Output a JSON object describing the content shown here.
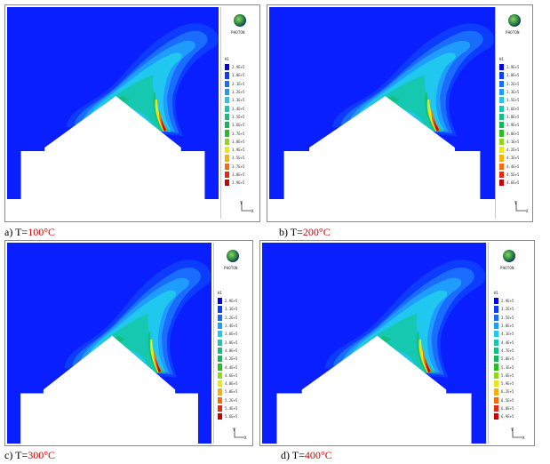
{
  "logo_text": "PHOTON",
  "legend_title": "H1",
  "axes": {
    "y": "Y",
    "x": "X"
  },
  "colors": [
    "#0000e8",
    "#0c3cff",
    "#1a6cff",
    "#1e9cff",
    "#20c8f0",
    "#17c8b0",
    "#12c080",
    "#10b858",
    "#28c020",
    "#90d818",
    "#e8e814",
    "#f8b010",
    "#f86a0a",
    "#e82810",
    "#c80000"
  ],
  "panels": [
    {
      "caption_prefix": "a) T=",
      "temp": "100",
      "unit": "°C",
      "legend": [
        "2.9E+5",
        "3.0E+5",
        "3.1E+5",
        "3.2E+5",
        "3.3E+5",
        "3.4E+5",
        "3.5E+5",
        "3.6E+5",
        "3.7E+5",
        "3.8E+5",
        "3.9E+5",
        "3.5E+5",
        "3.7E+5",
        "3.8E+5",
        "3.9E+5"
      ]
    },
    {
      "caption_prefix": "b) T=",
      "temp": "200",
      "unit": "°C",
      "legend": [
        "2.9E+5",
        "3.0E+5",
        "3.2E+5",
        "3.3E+5",
        "3.5E+5",
        "3.6E+5",
        "3.8E+5",
        "3.9E+5",
        "4.0E+5",
        "4.1E+5",
        "4.2E+5",
        "4.3E+5",
        "4.4E+5",
        "4.5E+5",
        "4.6E+5"
      ]
    },
    {
      "caption_prefix": "c) T=",
      "temp": "300",
      "unit": "°C",
      "legend": [
        "2.9E+5",
        "3.1E+5",
        "3.2E+5",
        "3.4E+5",
        "3.6E+5",
        "3.8E+5",
        "4.0E+5",
        "4.2E+5",
        "4.4E+5",
        "4.6E+5",
        "4.8E+5",
        "5.0E+5",
        "5.2E+5",
        "5.4E+5",
        "5.6E+5"
      ]
    },
    {
      "caption_prefix": "d) T=",
      "temp": "400",
      "unit": "°C",
      "legend": [
        "2.9E+5",
        "3.2E+5",
        "3.5E+5",
        "3.8E+5",
        "4.1E+5",
        "4.4E+5",
        "4.7E+5",
        "5.0E+5",
        "5.3E+5",
        "5.6E+5",
        "5.9E+5",
        "6.2E+5",
        "6.5E+5",
        "6.8E+5",
        "6.9E+5"
      ]
    }
  ]
}
